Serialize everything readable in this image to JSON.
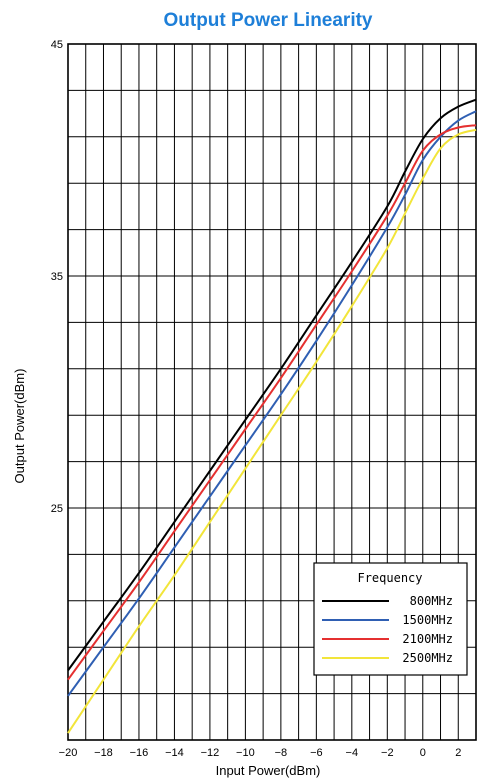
{
  "chart_data": {
    "type": "line",
    "title": "Output Power Linearity",
    "xlabel": "Input Power(dBm)",
    "ylabel": "Output Power(dBm)",
    "xlim": [
      -20,
      3
    ],
    "ylim": [
      15,
      45
    ],
    "x_ticks": [
      "−20",
      "−18",
      "−16",
      "−14",
      "−12",
      "−10",
      "−8",
      "−6",
      "−4",
      "−2",
      "0",
      "2"
    ],
    "y_ticks": [
      "45",
      "35",
      "25"
    ],
    "grid": true,
    "legend": {
      "title": "Frequency",
      "placement": "bottom-right"
    },
    "colors": {
      "title": "#1e7fd8",
      "800MHz": "#000000",
      "1500MHz": "#2f5fb3",
      "2100MHz": "#e53030",
      "2500MHz": "#f2e53a"
    },
    "series": [
      {
        "name": "800MHz",
        "points": [
          [
            -20,
            18.0
          ],
          [
            -18,
            20.1
          ],
          [
            -16,
            22.2
          ],
          [
            -14,
            24.4
          ],
          [
            -12,
            26.6
          ],
          [
            -10,
            28.8
          ],
          [
            -8,
            31.0
          ],
          [
            -6,
            33.3
          ],
          [
            -4,
            35.6
          ],
          [
            -2,
            38.0
          ],
          [
            -1,
            39.5
          ],
          [
            0,
            40.9
          ],
          [
            1,
            41.8
          ],
          [
            2,
            42.3
          ],
          [
            3,
            42.6
          ]
        ]
      },
      {
        "name": "1500MHz",
        "points": [
          [
            -20,
            16.9
          ],
          [
            -18,
            19.0
          ],
          [
            -16,
            21.1
          ],
          [
            -14,
            23.3
          ],
          [
            -12,
            25.5
          ],
          [
            -10,
            27.7
          ],
          [
            -8,
            29.9
          ],
          [
            -6,
            32.2
          ],
          [
            -4,
            34.6
          ],
          [
            -2,
            37.1
          ],
          [
            -1,
            38.5
          ],
          [
            0,
            40.0
          ],
          [
            1,
            41.0
          ],
          [
            2,
            41.7
          ],
          [
            3,
            42.1
          ]
        ]
      },
      {
        "name": "2100MHz",
        "points": [
          [
            -20,
            17.6
          ],
          [
            -18,
            19.7
          ],
          [
            -16,
            21.8
          ],
          [
            -14,
            24.0
          ],
          [
            -12,
            26.2
          ],
          [
            -10,
            28.4
          ],
          [
            -8,
            30.6
          ],
          [
            -6,
            32.9
          ],
          [
            -4,
            35.2
          ],
          [
            -2,
            37.6
          ],
          [
            -1,
            39.0
          ],
          [
            0,
            40.4
          ],
          [
            1,
            41.1
          ],
          [
            2,
            41.4
          ],
          [
            3,
            41.5
          ]
        ]
      },
      {
        "name": "2500MHz",
        "points": [
          [
            -20,
            15.3
          ],
          [
            -18,
            17.6
          ],
          [
            -16,
            19.9
          ],
          [
            -14,
            22.1
          ],
          [
            -12,
            24.4
          ],
          [
            -10,
            26.7
          ],
          [
            -8,
            29.0
          ],
          [
            -6,
            31.3
          ],
          [
            -4,
            33.7
          ],
          [
            -2,
            36.2
          ],
          [
            -1,
            37.7
          ],
          [
            0,
            39.2
          ],
          [
            1,
            40.5
          ],
          [
            2,
            41.1
          ],
          [
            3,
            41.3
          ]
        ]
      }
    ]
  }
}
